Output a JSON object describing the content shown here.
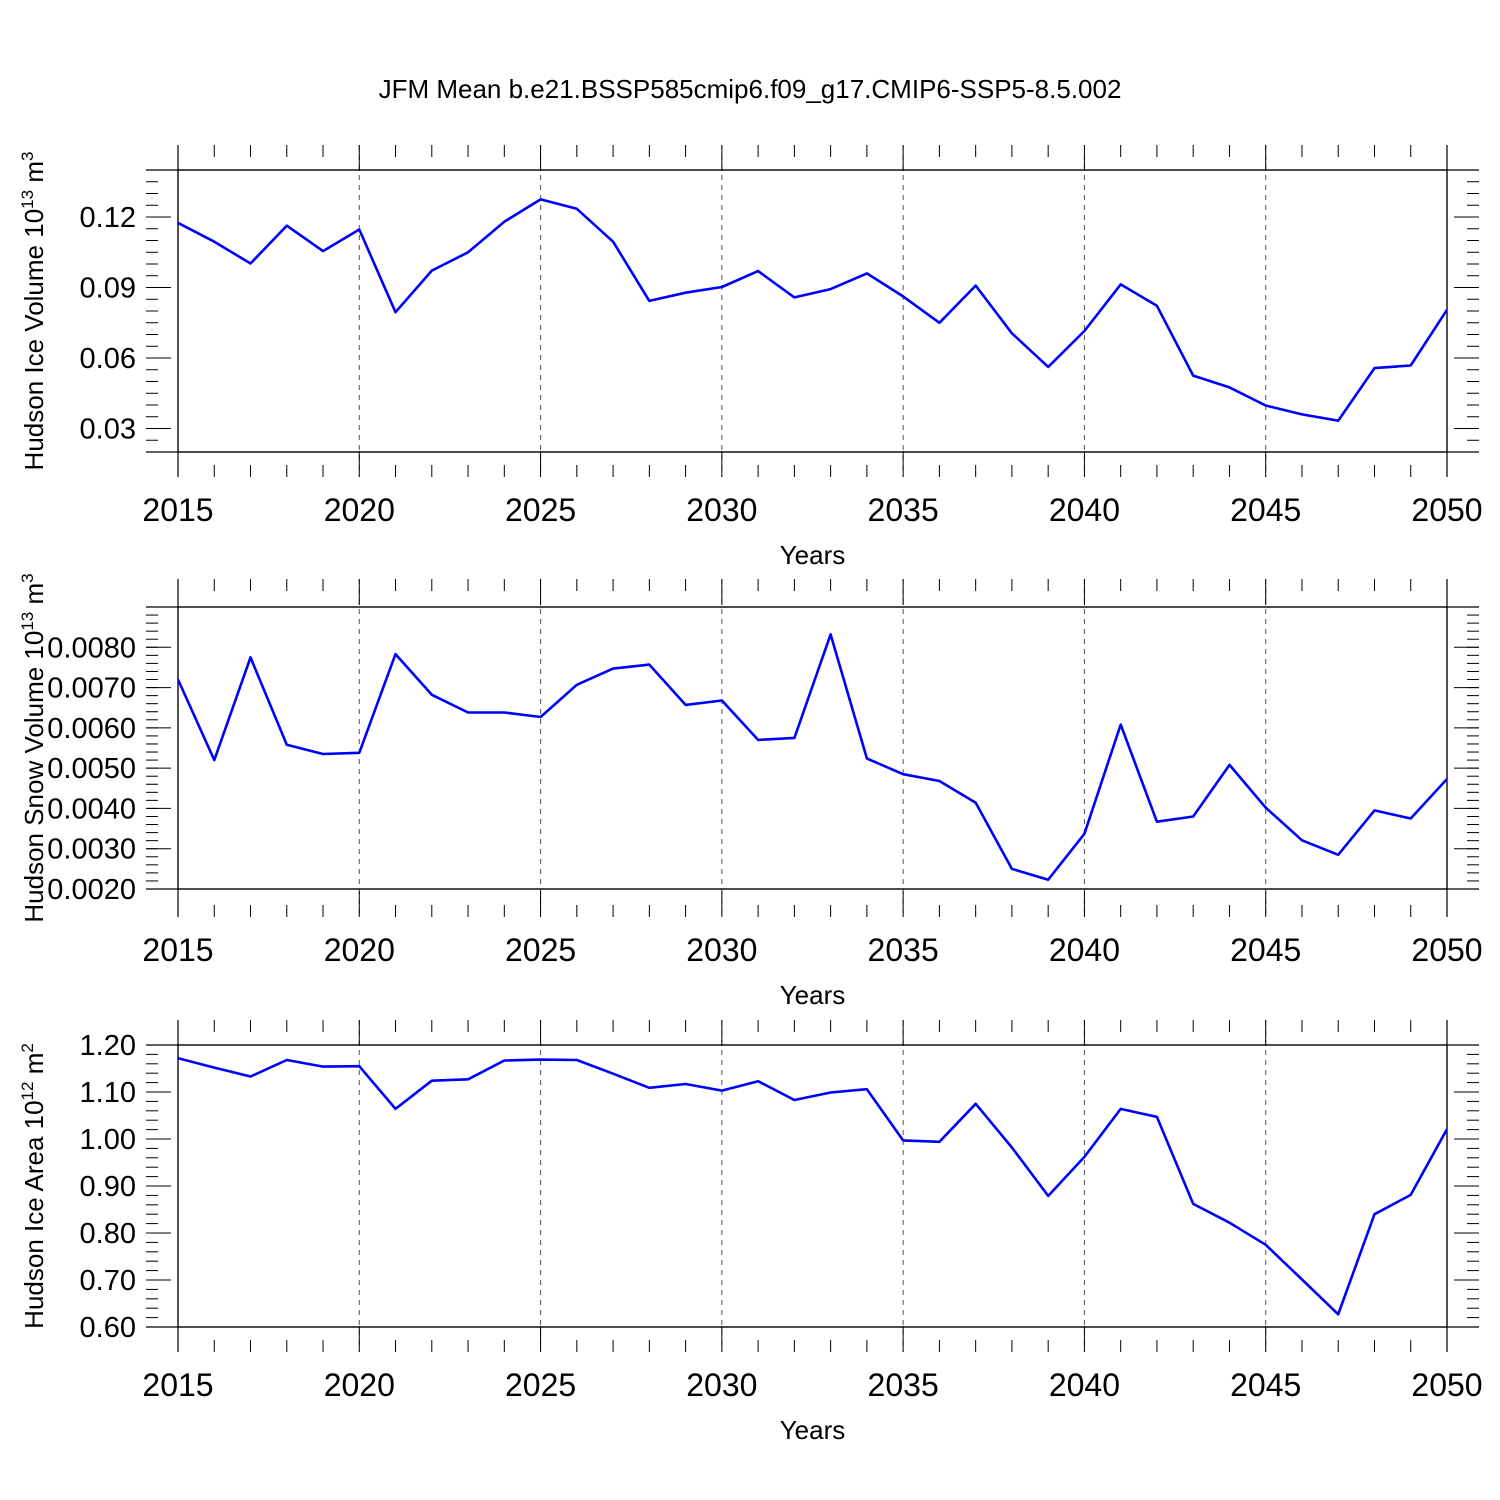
{
  "figure": {
    "title": "JFM Mean b.e21.BSSP585cmip6.f09_g17.CMIP6-SSP5-8.5.002"
  },
  "chart_data": [
    {
      "type": "line",
      "title": "JFM Mean b.e21.BSSP585cmip6.f09_g17.CMIP6-SSP5-8.5.002",
      "ylabel": "Hudson Ice Volume 10",
      "ylabel_exp": "13",
      "ylabel_unit": "m",
      "ylabel_unit_exp": "3",
      "xlabel": "Years",
      "xlim": [
        2015,
        2050
      ],
      "ylim": [
        0.02,
        0.14
      ],
      "yticks": [
        0.03,
        0.06,
        0.09,
        0.12
      ],
      "ytick_labels": [
        "0.03",
        "0.06",
        "0.09",
        "0.12"
      ],
      "xticks": [
        2015,
        2020,
        2025,
        2030,
        2035,
        2040,
        2045,
        2050
      ],
      "xtick_labels": [
        "2015",
        "2020",
        "2025",
        "2030",
        "2035",
        "2040",
        "2045",
        "2050"
      ],
      "series_color": "#0000ff",
      "x": [
        2015,
        2016,
        2017,
        2018,
        2019,
        2020,
        2021,
        2022,
        2023,
        2024,
        2025,
        2026,
        2027,
        2028,
        2029,
        2030,
        2031,
        2032,
        2033,
        2034,
        2035,
        2036,
        2037,
        2038,
        2039,
        2040,
        2041,
        2042,
        2043,
        2044,
        2045,
        2046,
        2047,
        2048,
        2049,
        2050
      ],
      "values": [
        0.1175,
        0.1095,
        0.1002,
        0.1163,
        0.1055,
        0.1147,
        0.0795,
        0.0972,
        0.105,
        0.118,
        0.1275,
        0.1235,
        0.1095,
        0.0843,
        0.0878,
        0.0902,
        0.097,
        0.0858,
        0.0893,
        0.096,
        0.0862,
        0.075,
        0.0908,
        0.0705,
        0.0562,
        0.0715,
        0.0913,
        0.0822,
        0.0525,
        0.0475,
        0.0398,
        0.036,
        0.0333,
        0.0557,
        0.0568,
        0.0805
      ]
    },
    {
      "type": "line",
      "ylabel": "Hudson Snow Volume 10",
      "ylabel_exp": "13",
      "ylabel_unit": "m",
      "ylabel_unit_exp": "3",
      "xlabel": "Years",
      "xlim": [
        2015,
        2050
      ],
      "ylim": [
        0.002,
        0.009
      ],
      "yticks": [
        0.002,
        0.003,
        0.004,
        0.005,
        0.006,
        0.007,
        0.008
      ],
      "ytick_labels": [
        "0.0020",
        "0.0030",
        "0.0040",
        "0.0050",
        "0.0060",
        "0.0070",
        "0.0080"
      ],
      "xticks": [
        2015,
        2020,
        2025,
        2030,
        2035,
        2040,
        2045,
        2050
      ],
      "xtick_labels": [
        "2015",
        "2020",
        "2025",
        "2030",
        "2035",
        "2040",
        "2045",
        "2050"
      ],
      "series_color": "#0000ff",
      "x": [
        2015,
        2016,
        2017,
        2018,
        2019,
        2020,
        2021,
        2022,
        2023,
        2024,
        2025,
        2026,
        2027,
        2028,
        2029,
        2030,
        2031,
        2032,
        2033,
        2034,
        2035,
        2036,
        2037,
        2038,
        2039,
        2040,
        2041,
        2042,
        2043,
        2044,
        2045,
        2046,
        2047,
        2048,
        2049,
        2050
      ],
      "values": [
        0.0072,
        0.0052,
        0.00775,
        0.00558,
        0.00535,
        0.00538,
        0.00783,
        0.00682,
        0.00638,
        0.00638,
        0.00627,
        0.00707,
        0.00747,
        0.00757,
        0.00657,
        0.00668,
        0.0057,
        0.00575,
        0.00832,
        0.00524,
        0.00485,
        0.00468,
        0.00414,
        0.0025,
        0.00223,
        0.00337,
        0.00608,
        0.00367,
        0.0038,
        0.00508,
        0.00402,
        0.00321,
        0.00285,
        0.00395,
        0.00375,
        0.00473
      ]
    },
    {
      "type": "line",
      "ylabel": "Hudson Ice Area 10",
      "ylabel_exp": "12",
      "ylabel_unit": "m",
      "ylabel_unit_exp": "2",
      "xlabel": "Years",
      "xlim": [
        2015,
        2050
      ],
      "ylim": [
        0.6,
        1.2
      ],
      "yticks": [
        0.6,
        0.7,
        0.8,
        0.9,
        1.0,
        1.1,
        1.2
      ],
      "ytick_labels": [
        "0.60",
        "0.70",
        "0.80",
        "0.90",
        "1.00",
        "1.10",
        "1.20"
      ],
      "xticks": [
        2015,
        2020,
        2025,
        2030,
        2035,
        2040,
        2045,
        2050
      ],
      "xtick_labels": [
        "2015",
        "2020",
        "2025",
        "2030",
        "2035",
        "2040",
        "2045",
        "2050"
      ],
      "series_color": "#0000ff",
      "x": [
        2015,
        2016,
        2017,
        2018,
        2019,
        2020,
        2021,
        2022,
        2023,
        2024,
        2025,
        2026,
        2027,
        2028,
        2029,
        2030,
        2031,
        2032,
        2033,
        2034,
        2035,
        2036,
        2037,
        2038,
        2039,
        2040,
        2041,
        2042,
        2043,
        2044,
        2045,
        2046,
        2047,
        2048,
        2049,
        2050
      ],
      "values": [
        1.172,
        1.152,
        1.133,
        1.168,
        1.154,
        1.155,
        1.064,
        1.124,
        1.127,
        1.167,
        1.169,
        1.168,
        1.139,
        1.109,
        1.117,
        1.103,
        1.123,
        1.083,
        1.099,
        1.106,
        0.997,
        0.994,
        1.075,
        0.982,
        0.879,
        0.962,
        1.064,
        1.047,
        0.862,
        0.822,
        0.775,
        0.701,
        0.627,
        0.84,
        0.881,
        1.021
      ]
    }
  ]
}
